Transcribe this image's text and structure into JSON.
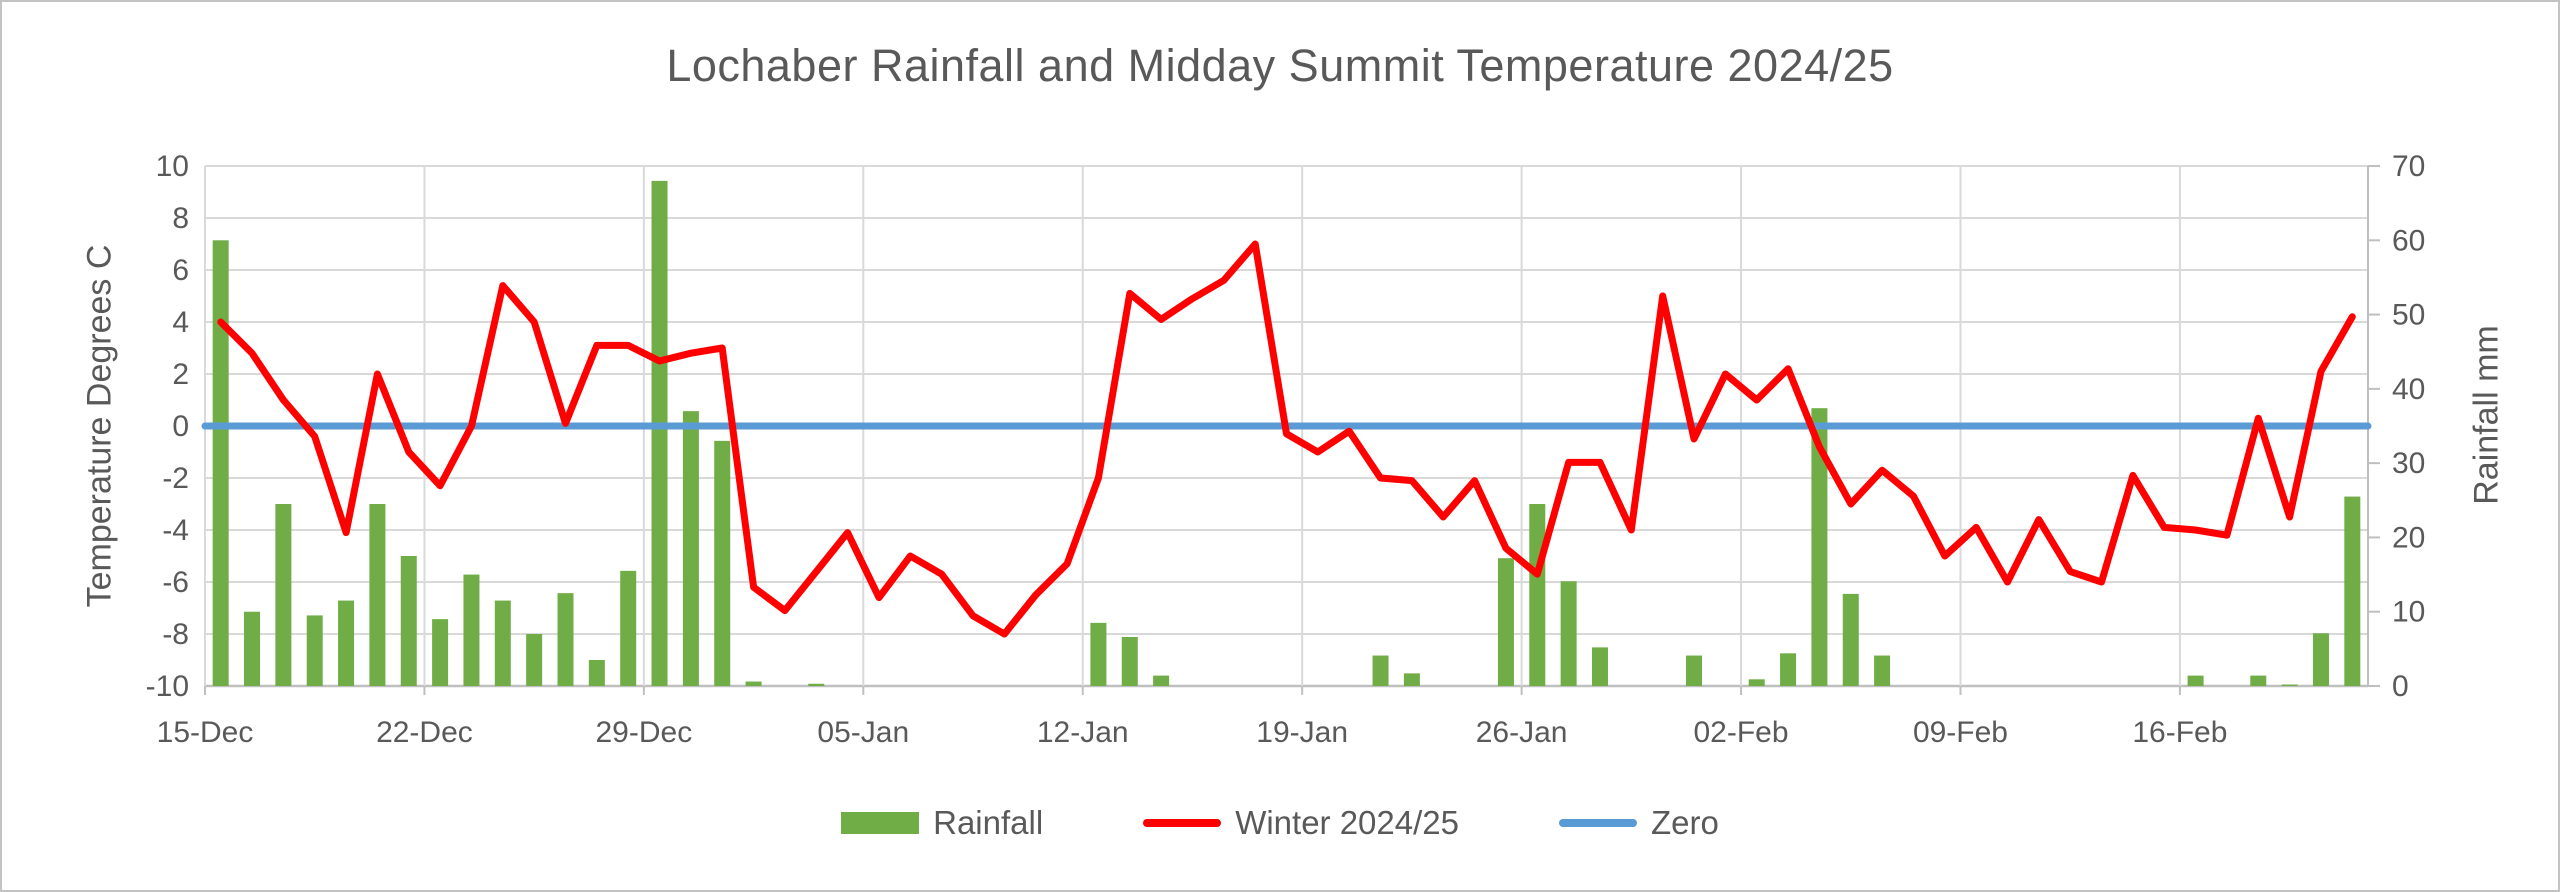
{
  "chart_data": {
    "type": "combo-bar-line",
    "title": "Lochaber Rainfall and Midday Summit Temperature 2024/25",
    "left_axis": {
      "title": "Temperature Degrees C",
      "min": -10,
      "max": 10,
      "step": 2,
      "ticks": [
        10,
        8,
        6,
        4,
        2,
        0,
        -2,
        -4,
        -6,
        -8,
        -10
      ]
    },
    "right_axis": {
      "title": "Rainfall mm",
      "min": 0,
      "max": 70,
      "step": 10,
      "ticks": [
        70,
        60,
        50,
        40,
        30,
        20,
        10,
        0
      ]
    },
    "x_axis": {
      "tick_interval_days": 7,
      "ticks": [
        {
          "label": "15-Dec",
          "day": 0
        },
        {
          "label": "22-Dec",
          "day": 7
        },
        {
          "label": "29-Dec",
          "day": 14
        },
        {
          "label": "05-Jan",
          "day": 21
        },
        {
          "label": "12-Jan",
          "day": 28
        },
        {
          "label": "19-Jan",
          "day": 35
        },
        {
          "label": "26-Jan",
          "day": 42
        },
        {
          "label": "02-Feb",
          "day": 49
        },
        {
          "label": "09-Feb",
          "day": 56
        },
        {
          "label": "16-Feb",
          "day": 63
        }
      ]
    },
    "legend": [
      {
        "label": "Rainfall",
        "marker": "bar",
        "color": "#70AD47"
      },
      {
        "label": "Winter 2024/25",
        "marker": "line",
        "color": "#FF0000"
      },
      {
        "label": "Zero",
        "marker": "line",
        "color": "#5B9BD5"
      }
    ],
    "grid": true,
    "legend_position": "bottom",
    "dates": [
      "15-Dec",
      "16-Dec",
      "17-Dec",
      "18-Dec",
      "19-Dec",
      "20-Dec",
      "21-Dec",
      "22-Dec",
      "23-Dec",
      "24-Dec",
      "25-Dec",
      "26-Dec",
      "27-Dec",
      "28-Dec",
      "29-Dec",
      "30-Dec",
      "31-Dec",
      "01-Jan",
      "02-Jan",
      "03-Jan",
      "04-Jan",
      "05-Jan",
      "06-Jan",
      "07-Jan",
      "08-Jan",
      "09-Jan",
      "10-Jan",
      "11-Jan",
      "12-Jan",
      "13-Jan",
      "14-Jan",
      "15-Jan",
      "16-Jan",
      "17-Jan",
      "18-Jan",
      "19-Jan",
      "20-Jan",
      "21-Jan",
      "22-Jan",
      "23-Jan",
      "24-Jan",
      "25-Jan",
      "26-Jan",
      "27-Jan",
      "28-Jan",
      "29-Jan",
      "30-Jan",
      "31-Jan",
      "01-Feb",
      "02-Feb",
      "03-Feb",
      "04-Feb",
      "05-Feb",
      "06-Feb",
      "07-Feb",
      "08-Feb",
      "09-Feb",
      "10-Feb",
      "11-Feb",
      "12-Feb",
      "13-Feb",
      "14-Feb",
      "15-Feb",
      "16-Feb",
      "17-Feb",
      "18-Feb",
      "19-Feb",
      "20-Feb",
      "21-Feb"
    ],
    "series": [
      {
        "name": "Rainfall",
        "axis": "right",
        "type": "bar",
        "values": [
          60,
          10,
          24.5,
          9.5,
          11.5,
          24.5,
          17.5,
          9,
          15,
          11.5,
          7,
          12.5,
          3.5,
          15.5,
          68,
          37,
          33,
          0.6,
          0,
          0.3,
          0,
          0,
          0,
          0,
          0,
          0,
          0,
          0,
          8.5,
          6.6,
          1.4,
          0,
          0,
          0,
          0,
          0,
          0,
          4.1,
          1.7,
          0,
          0,
          17.2,
          24.5,
          14.1,
          5.2,
          0,
          0,
          4.1,
          0,
          0.9,
          4.4,
          37.4,
          12.4,
          4.1,
          0,
          0,
          0,
          0,
          0,
          0,
          0,
          0,
          0,
          1.4,
          0,
          1.4,
          0.2,
          7.1,
          25.5
        ]
      },
      {
        "name": "Winter 2024/25",
        "axis": "left",
        "type": "line",
        "values": [
          4.0,
          2.8,
          1.0,
          -0.4,
          -4.1,
          2.0,
          -1.0,
          -2.3,
          0.0,
          5.4,
          4.0,
          0.1,
          3.1,
          3.1,
          2.5,
          2.8,
          3.0,
          -6.2,
          -7.1,
          -5.6,
          -4.1,
          -6.6,
          -5.0,
          -5.7,
          -7.3,
          -8.0,
          -6.5,
          -5.3,
          -2.0,
          5.1,
          4.1,
          4.9,
          5.6,
          7.0,
          -0.3,
          -1.0,
          -0.2,
          -2.0,
          -2.1,
          -3.5,
          -2.1,
          -4.7,
          -5.7,
          -1.4,
          -1.4,
          -4.0,
          5.0,
          -0.5,
          2.0,
          1.0,
          2.2,
          -0.8,
          -3.0,
          -1.7,
          -2.7,
          -5.0,
          -3.9,
          -6.0,
          -3.6,
          -5.6,
          -6.0,
          -1.9,
          -3.9,
          -4.0,
          -4.2,
          0.3,
          -3.5,
          2.1,
          4.2
        ]
      },
      {
        "name": "Zero",
        "axis": "left",
        "type": "line",
        "constant": 0
      }
    ]
  },
  "colors": {
    "bar_green": "#70AD47",
    "line_red": "#FF0000",
    "line_blue": "#5B9BD5",
    "gridline": "#D9D9D9",
    "axis_line": "#BFBFBF",
    "text": "#595959",
    "background": "#FFFFFF",
    "frame_border": "#C3C3C3"
  }
}
